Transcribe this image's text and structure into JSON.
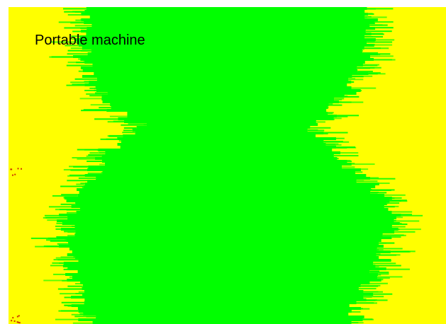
{
  "title": "Portable machine",
  "chart_data": {
    "type": "heatmap",
    "title": "Portable machine",
    "xlabel": "",
    "ylabel": "",
    "grid": false,
    "legend": "none",
    "colors": {
      "background": "#ffffff",
      "outer": "#ffff00",
      "inner": "#00ff00",
      "speckle": "#cc3300"
    },
    "region_profile": [
      {
        "y": 0.0,
        "start": 0.17,
        "end": 0.83
      },
      {
        "y": 0.05,
        "start": 0.17,
        "end": 0.82
      },
      {
        "y": 0.1,
        "start": 0.17,
        "end": 0.82
      },
      {
        "y": 0.15,
        "start": 0.17,
        "end": 0.82
      },
      {
        "y": 0.2,
        "start": 0.18,
        "end": 0.81
      },
      {
        "y": 0.25,
        "start": 0.2,
        "end": 0.79
      },
      {
        "y": 0.3,
        "start": 0.23,
        "end": 0.76
      },
      {
        "y": 0.35,
        "start": 0.26,
        "end": 0.73
      },
      {
        "y": 0.38,
        "start": 0.31,
        "end": 0.68
      },
      {
        "y": 0.41,
        "start": 0.24,
        "end": 0.73
      },
      {
        "y": 0.45,
        "start": 0.23,
        "end": 0.74
      },
      {
        "y": 0.5,
        "start": 0.21,
        "end": 0.78
      },
      {
        "y": 0.55,
        "start": 0.17,
        "end": 0.82
      },
      {
        "y": 0.6,
        "start": 0.15,
        "end": 0.86
      },
      {
        "y": 0.65,
        "start": 0.14,
        "end": 0.88
      },
      {
        "y": 0.7,
        "start": 0.13,
        "end": 0.88
      },
      {
        "y": 0.75,
        "start": 0.13,
        "end": 0.87
      },
      {
        "y": 0.8,
        "start": 0.14,
        "end": 0.86
      },
      {
        "y": 0.85,
        "start": 0.15,
        "end": 0.84
      },
      {
        "y": 0.9,
        "start": 0.16,
        "end": 0.82
      },
      {
        "y": 0.95,
        "start": 0.17,
        "end": 0.8
      },
      {
        "y": 1.0,
        "start": 0.18,
        "end": 0.79
      }
    ]
  }
}
